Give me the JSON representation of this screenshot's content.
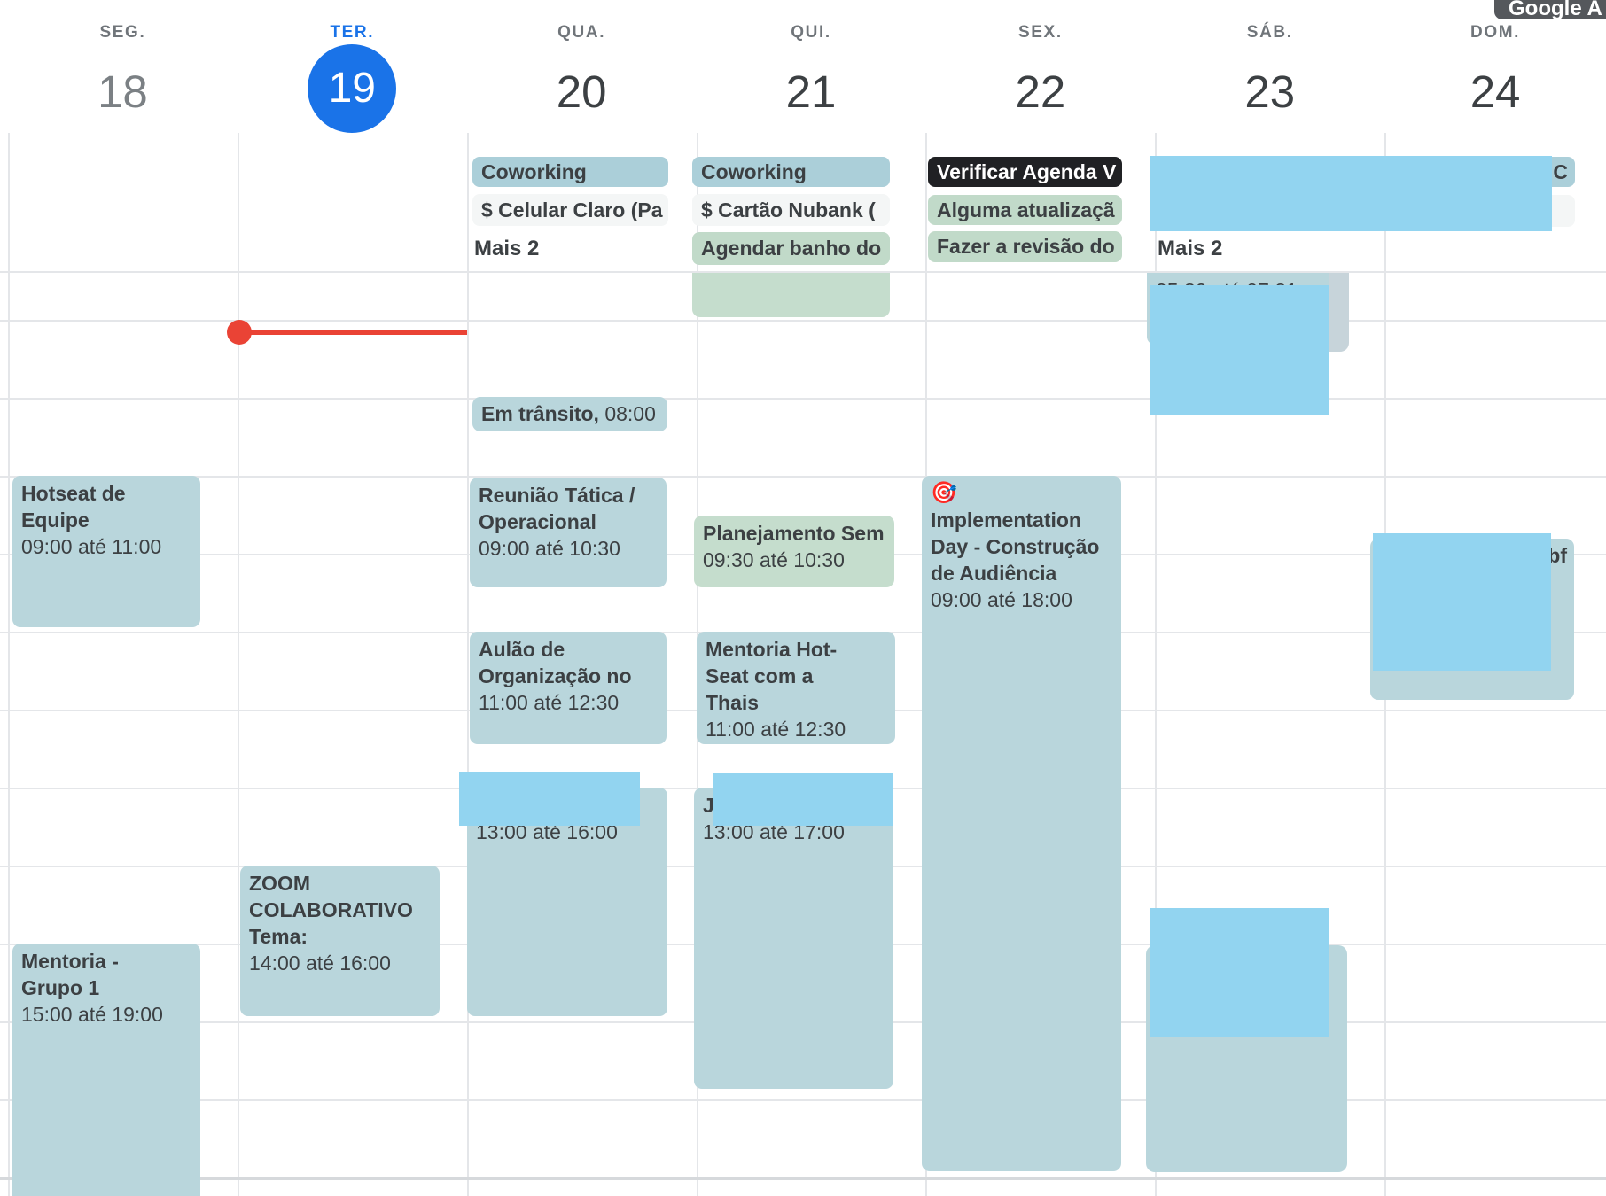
{
  "page": {
    "badge": "Google A"
  },
  "header": {
    "days": [
      {
        "label": "SEG.",
        "number": "18"
      },
      {
        "label": "TER.",
        "number": "19",
        "selected": true
      },
      {
        "label": "QUA.",
        "number": "20"
      },
      {
        "label": "QUI.",
        "number": "21"
      },
      {
        "label": "SEX.",
        "number": "22"
      },
      {
        "label": "SÁB.",
        "number": "23"
      },
      {
        "label": "DOM.",
        "number": "24"
      }
    ]
  },
  "all_day": [
    {
      "day": "QUA.",
      "chips": [
        {
          "text": "Coworking",
          "variant": "blue"
        },
        {
          "text": "$ Celular Claro (Pa",
          "variant": "white"
        }
      ],
      "more": "Mais 2"
    },
    {
      "day": "QUI.",
      "chips": [
        {
          "text": "Coworking",
          "variant": "blue"
        },
        {
          "text": "$ Cartão Nubank (",
          "variant": "white"
        },
        {
          "text": "Agendar banho do",
          "variant": "green"
        }
      ]
    },
    {
      "day": "SEX.",
      "chips": [
        {
          "text": "Verificar Agenda V",
          "variant": "black"
        },
        {
          "text": "Alguma atualizaçã",
          "variant": "green"
        },
        {
          "text": "Fazer a revisão do",
          "variant": "green"
        }
      ]
    },
    {
      "day": "SÁB.–DOM.",
      "chips": [
        {
          "text": "C",
          "variant": "blue"
        },
        {
          "text": "",
          "variant": "white"
        }
      ],
      "more": "Mais 2"
    }
  ],
  "events": [
    {
      "id": "seg-hotseat",
      "title": "Hotseat de Equipe",
      "time": "09:00 até 11:00"
    },
    {
      "id": "seg-mentoria-grupo-1",
      "title": "Mentoria - Grupo 1",
      "time": "15:00 até 19:00"
    },
    {
      "id": "ter-zoom-colaborativo",
      "title": "ZOOM COLABORATIVO Tema:",
      "time": "14:00 até 16:00"
    },
    {
      "id": "qua-em-transito",
      "title": "Em trânsito,",
      "time": "08:00"
    },
    {
      "id": "qua-reuniao-tatica",
      "title": "Reunião Tática / Operacional",
      "time": "09:00 até 10:30"
    },
    {
      "id": "qua-aulao-organizacao",
      "title": "Aulão de Organização no",
      "time": "11:00 até 12:30"
    },
    {
      "id": "qua-redacted-13h",
      "title": "",
      "time": "13:00 até 16:00"
    },
    {
      "id": "qui-morning-green",
      "title": "",
      "time": ""
    },
    {
      "id": "qui-planejamento",
      "title": "Planejamento Sem",
      "time": "09:30 até 10:30"
    },
    {
      "id": "qui-mentoria-hot-seat",
      "title": "Mentoria Hot-Seat com a Thais",
      "time": "11:00 até 12:30"
    },
    {
      "id": "qui-redacted-13h",
      "title": "J",
      "time": "13:00 até 17:00"
    },
    {
      "id": "sex-implementation-day",
      "icon": "🎯",
      "title": "Implementation Day - Construção de Audiência",
      "time": "09:00 até 18:00"
    },
    {
      "id": "sab-early-morning",
      "title": "",
      "time": "05:30 até 07:21"
    },
    {
      "id": "sab-afternoon",
      "title": "",
      "time": ""
    },
    {
      "id": "dom-midday",
      "title": "bf",
      "time": ""
    }
  ],
  "colors": {
    "accent_blue": "#1a73e8",
    "now_red": "#ea4335",
    "event_blue": "#b9d6dc",
    "chip_blue": "#abcfd9",
    "event_green": "#c5ddcd",
    "chip_green": "#c1dac9",
    "chip_white": "#f4f6f6",
    "chip_black": "#202124",
    "redaction_blue": "#92d4f0",
    "shadow_chip": "#c7d4da",
    "text": "#3c4043",
    "grid": "#e4e6e9",
    "badge_bg": "#55585c"
  }
}
